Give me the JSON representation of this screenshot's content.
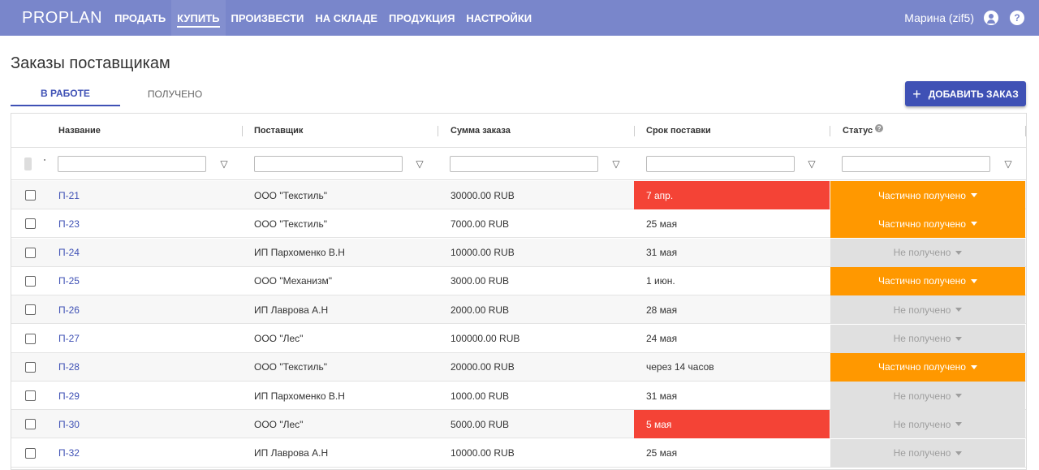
{
  "app": {
    "logo": "PROPLAN",
    "nav": [
      "ПРОДАТЬ",
      "КУПИТЬ",
      "ПРОИЗВЕСТИ",
      "НА СКЛАДЕ",
      "ПРОДУКЦИЯ",
      "НАСТРОЙКИ"
    ],
    "active_nav": "КУПИТЬ",
    "user": "Марина (zif5)"
  },
  "page": {
    "title": "Заказы поставщикам",
    "tabs": [
      {
        "label": "В РАБОТЕ",
        "active": true
      },
      {
        "label": "ПОЛУЧЕНО",
        "active": false
      }
    ],
    "add_button_label": "ДОБАВИТЬ ЗАКАЗ"
  },
  "table": {
    "columns": [
      "Название",
      "Поставщик",
      "Сумма заказа",
      "Срок поставки",
      "Статус"
    ],
    "filter_values": [
      "",
      "",
      "",
      "",
      ""
    ],
    "rows": [
      {
        "name": "П-21",
        "supplier": "ООО \"Текстиль\"",
        "amount": "30000.00 RUB",
        "deadline": "7 апр.",
        "overdue": true,
        "status": "Частично получено",
        "status_type": "partial"
      },
      {
        "name": "П-23",
        "supplier": "ООО \"Текстиль\"",
        "amount": "7000.00 RUB",
        "deadline": "25 мая",
        "overdue": false,
        "status": "Частично получено",
        "status_type": "partial"
      },
      {
        "name": "П-24",
        "supplier": "ИП Пархоменко В.Н",
        "amount": "10000.00 RUB",
        "deadline": "31 мая",
        "overdue": false,
        "status": "Не получено",
        "status_type": "none"
      },
      {
        "name": "П-25",
        "supplier": "ООО \"Механизм\"",
        "amount": "3000.00 RUB",
        "deadline": "1 июн.",
        "overdue": false,
        "status": "Частично получено",
        "status_type": "partial"
      },
      {
        "name": "П-26",
        "supplier": "ИП Лаврова А.Н",
        "amount": "2000.00 RUB",
        "deadline": "28 мая",
        "overdue": false,
        "status": "Не получено",
        "status_type": "none"
      },
      {
        "name": "П-27",
        "supplier": "ООО \"Лес\"",
        "amount": "100000.00 RUB",
        "deadline": "24 мая",
        "overdue": false,
        "status": "Не получено",
        "status_type": "none"
      },
      {
        "name": "П-28",
        "supplier": "ООО \"Текстиль\"",
        "amount": "20000.00 RUB",
        "deadline": "через 14 часов",
        "overdue": false,
        "status": "Частично получено",
        "status_type": "partial"
      },
      {
        "name": "П-29",
        "supplier": "ИП Пархоменко В.Н",
        "amount": "1000.00 RUB",
        "deadline": "31 мая",
        "overdue": false,
        "status": "Не получено",
        "status_type": "none"
      },
      {
        "name": "П-30",
        "supplier": "ООО \"Лес\"",
        "amount": "5000.00 RUB",
        "deadline": "5 мая",
        "overdue": true,
        "status": "Не получено",
        "status_type": "none"
      },
      {
        "name": "П-32",
        "supplier": "ИП Лаврова А.Н",
        "amount": "10000.00 RUB",
        "deadline": "25 мая",
        "overdue": false,
        "status": "Не получено",
        "status_type": "none"
      }
    ]
  },
  "colors": {
    "header_bg": "#7986cb",
    "primary": "#3f51b5",
    "overdue": "#f44336",
    "partial": "#ff9800",
    "not_received": "#e0e0e0"
  },
  "icons": {
    "filter": "funnel-icon",
    "account": "account-circle-icon",
    "help": "help-circle-icon",
    "add": "plus-icon",
    "dropdown": "caret-down-icon"
  }
}
